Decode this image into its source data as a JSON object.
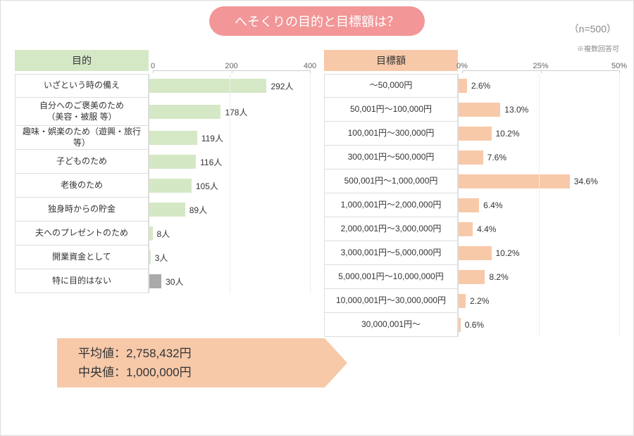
{
  "title": "へそくりの目的と目標額は？",
  "n_note": "（n=500）",
  "colors": {
    "title_bg": "#f29698",
    "title_fg": "#ffffff",
    "left_header_bg": "#d5e8c6",
    "right_header_bg": "#f7c9a9",
    "left_bar": "#d5e8c6",
    "left_bar_alt": "#aaaaaa",
    "right_bar": "#f7c9a9",
    "border": "#dddddd",
    "stats_bg": "#f7c9a9"
  },
  "left": {
    "title": "目的",
    "unit_suffix": "人",
    "axis": {
      "min": 0,
      "max": 400,
      "ticks": [
        0,
        200,
        400
      ]
    },
    "rows": [
      {
        "label": "いざという時の備え",
        "value": 292,
        "alt": false,
        "tall": false
      },
      {
        "label": "自分へのご褒美のため\n（美容・被服 等）",
        "value": 178,
        "alt": false,
        "tall": true
      },
      {
        "label": "趣味・娯楽のため（遊興・旅行 等）",
        "value": 119,
        "alt": false,
        "tall": false
      },
      {
        "label": "子どものため",
        "value": 116,
        "alt": false,
        "tall": false
      },
      {
        "label": "老後のため",
        "value": 105,
        "alt": false,
        "tall": false
      },
      {
        "label": "独身時からの貯金",
        "value": 89,
        "alt": false,
        "tall": false
      },
      {
        "label": "夫へのプレゼントのため",
        "value": 8,
        "alt": false,
        "tall": false
      },
      {
        "label": "開業資金として",
        "value": 3,
        "alt": false,
        "tall": false
      },
      {
        "label": "特に目的はない",
        "value": 30,
        "alt": true,
        "tall": false
      }
    ]
  },
  "right": {
    "title": "目標額",
    "note": "※複数回答可",
    "unit_suffix": "%",
    "axis": {
      "min": 0,
      "max": 50,
      "ticks": [
        0,
        25,
        50
      ],
      "tick_suffix": "%"
    },
    "rows": [
      {
        "label": "〜50,000円",
        "value": 2.6
      },
      {
        "label": "50,001円〜100,000円",
        "value": 13.0
      },
      {
        "label": "100,001円〜300,000円",
        "value": 10.2
      },
      {
        "label": "300,001円〜500,000円",
        "value": 7.6
      },
      {
        "label": "500,001円〜1,000,000円",
        "value": 34.6
      },
      {
        "label": "1,000,001円〜2,000,000円",
        "value": 6.4
      },
      {
        "label": "2,000,001円〜3,000,000円",
        "value": 4.4
      },
      {
        "label": "3,000,001円〜5,000,000円",
        "value": 10.2
      },
      {
        "label": "5,000,001円〜10,000,000円",
        "value": 8.2
      },
      {
        "label": "10,000,001円〜30,000,000円",
        "value": 2.2
      },
      {
        "label": "30,000,001円〜",
        "value": 0.6
      }
    ]
  },
  "stats": {
    "line1": "平均値：2,758,432円",
    "line2": "中央値：1,000,000円"
  }
}
